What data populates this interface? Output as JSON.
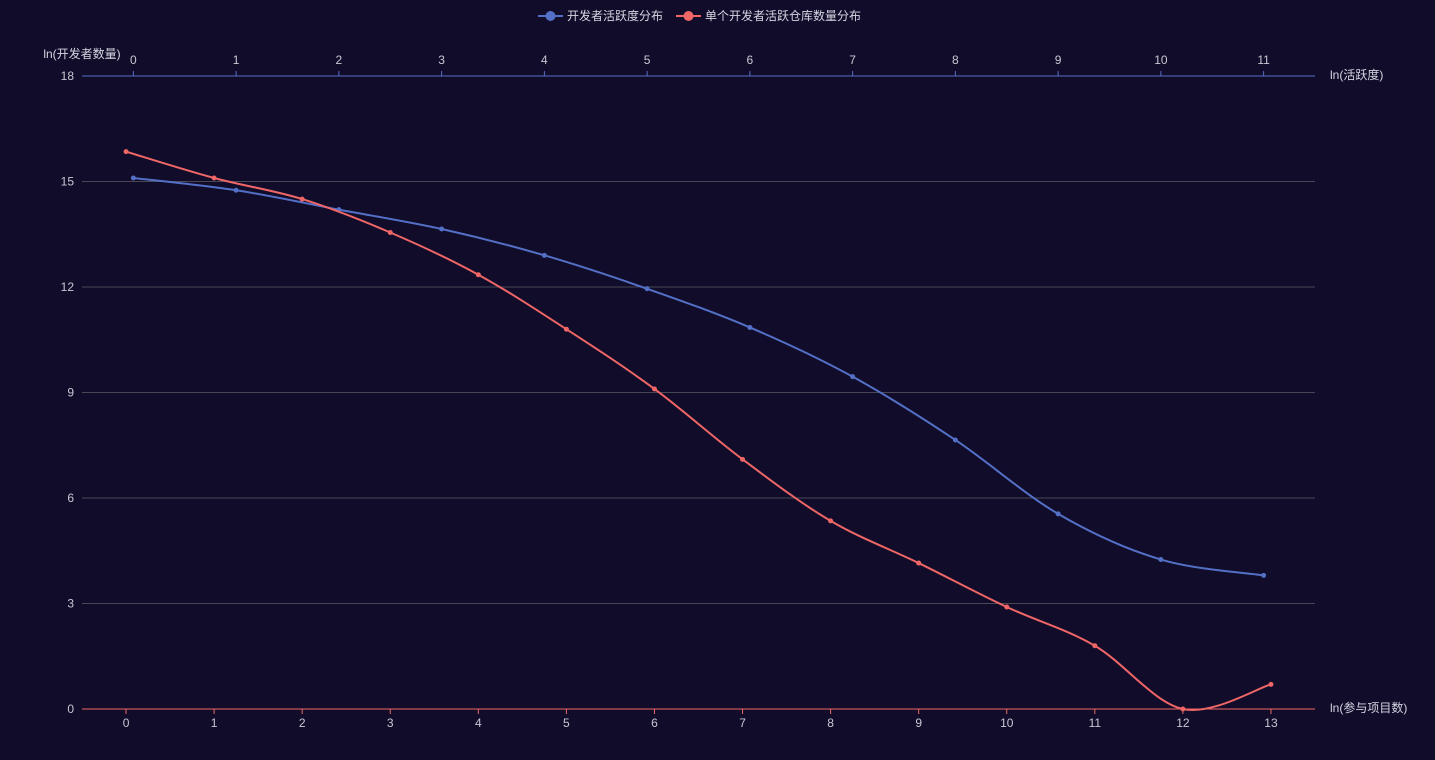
{
  "chart_data": {
    "type": "line",
    "legend": {
      "position": "top-center",
      "items": [
        "开发者活跃度分布",
        "单个开发者活跃仓库数量分布"
      ]
    },
    "y_axis": {
      "name": "ln(开发者数量)",
      "min": 0,
      "max": 18,
      "ticks": [
        0,
        3,
        6,
        9,
        12,
        15,
        18
      ],
      "grid": true
    },
    "x_axis_top": {
      "name": "ln(活跃度)",
      "min": -0.5,
      "max": 11.5,
      "ticks": [
        0,
        1,
        2,
        3,
        4,
        5,
        6,
        7,
        8,
        9,
        10,
        11
      ],
      "color": "#5470c6"
    },
    "x_axis_bottom": {
      "name": "ln(参与项目数)",
      "min": -0.5,
      "max": 13.5,
      "ticks": [
        0,
        1,
        2,
        3,
        4,
        5,
        6,
        7,
        8,
        9,
        10,
        11,
        12,
        13
      ],
      "color": "#ee6666"
    },
    "series": [
      {
        "name": "开发者活跃度分布",
        "axis": "top",
        "color": "#5470c6",
        "smooth": true,
        "x": [
          0,
          1,
          2,
          3,
          4,
          5,
          6,
          7,
          8,
          9,
          10,
          11
        ],
        "y": [
          15.1,
          14.75,
          14.2,
          13.65,
          12.9,
          11.95,
          10.85,
          9.45,
          7.65,
          5.55,
          4.25,
          3.8
        ]
      },
      {
        "name": "单个开发者活跃仓库数量分布",
        "axis": "bottom",
        "color": "#ee6666",
        "smooth": true,
        "x": [
          0,
          1,
          2,
          3,
          4,
          5,
          6,
          7,
          8,
          9,
          10,
          11,
          12,
          13
        ],
        "y": [
          15.85,
          15.1,
          14.5,
          13.55,
          12.35,
          10.8,
          9.1,
          7.1,
          5.35,
          4.15,
          2.9,
          1.8,
          0.0,
          0.7
        ]
      }
    ]
  }
}
